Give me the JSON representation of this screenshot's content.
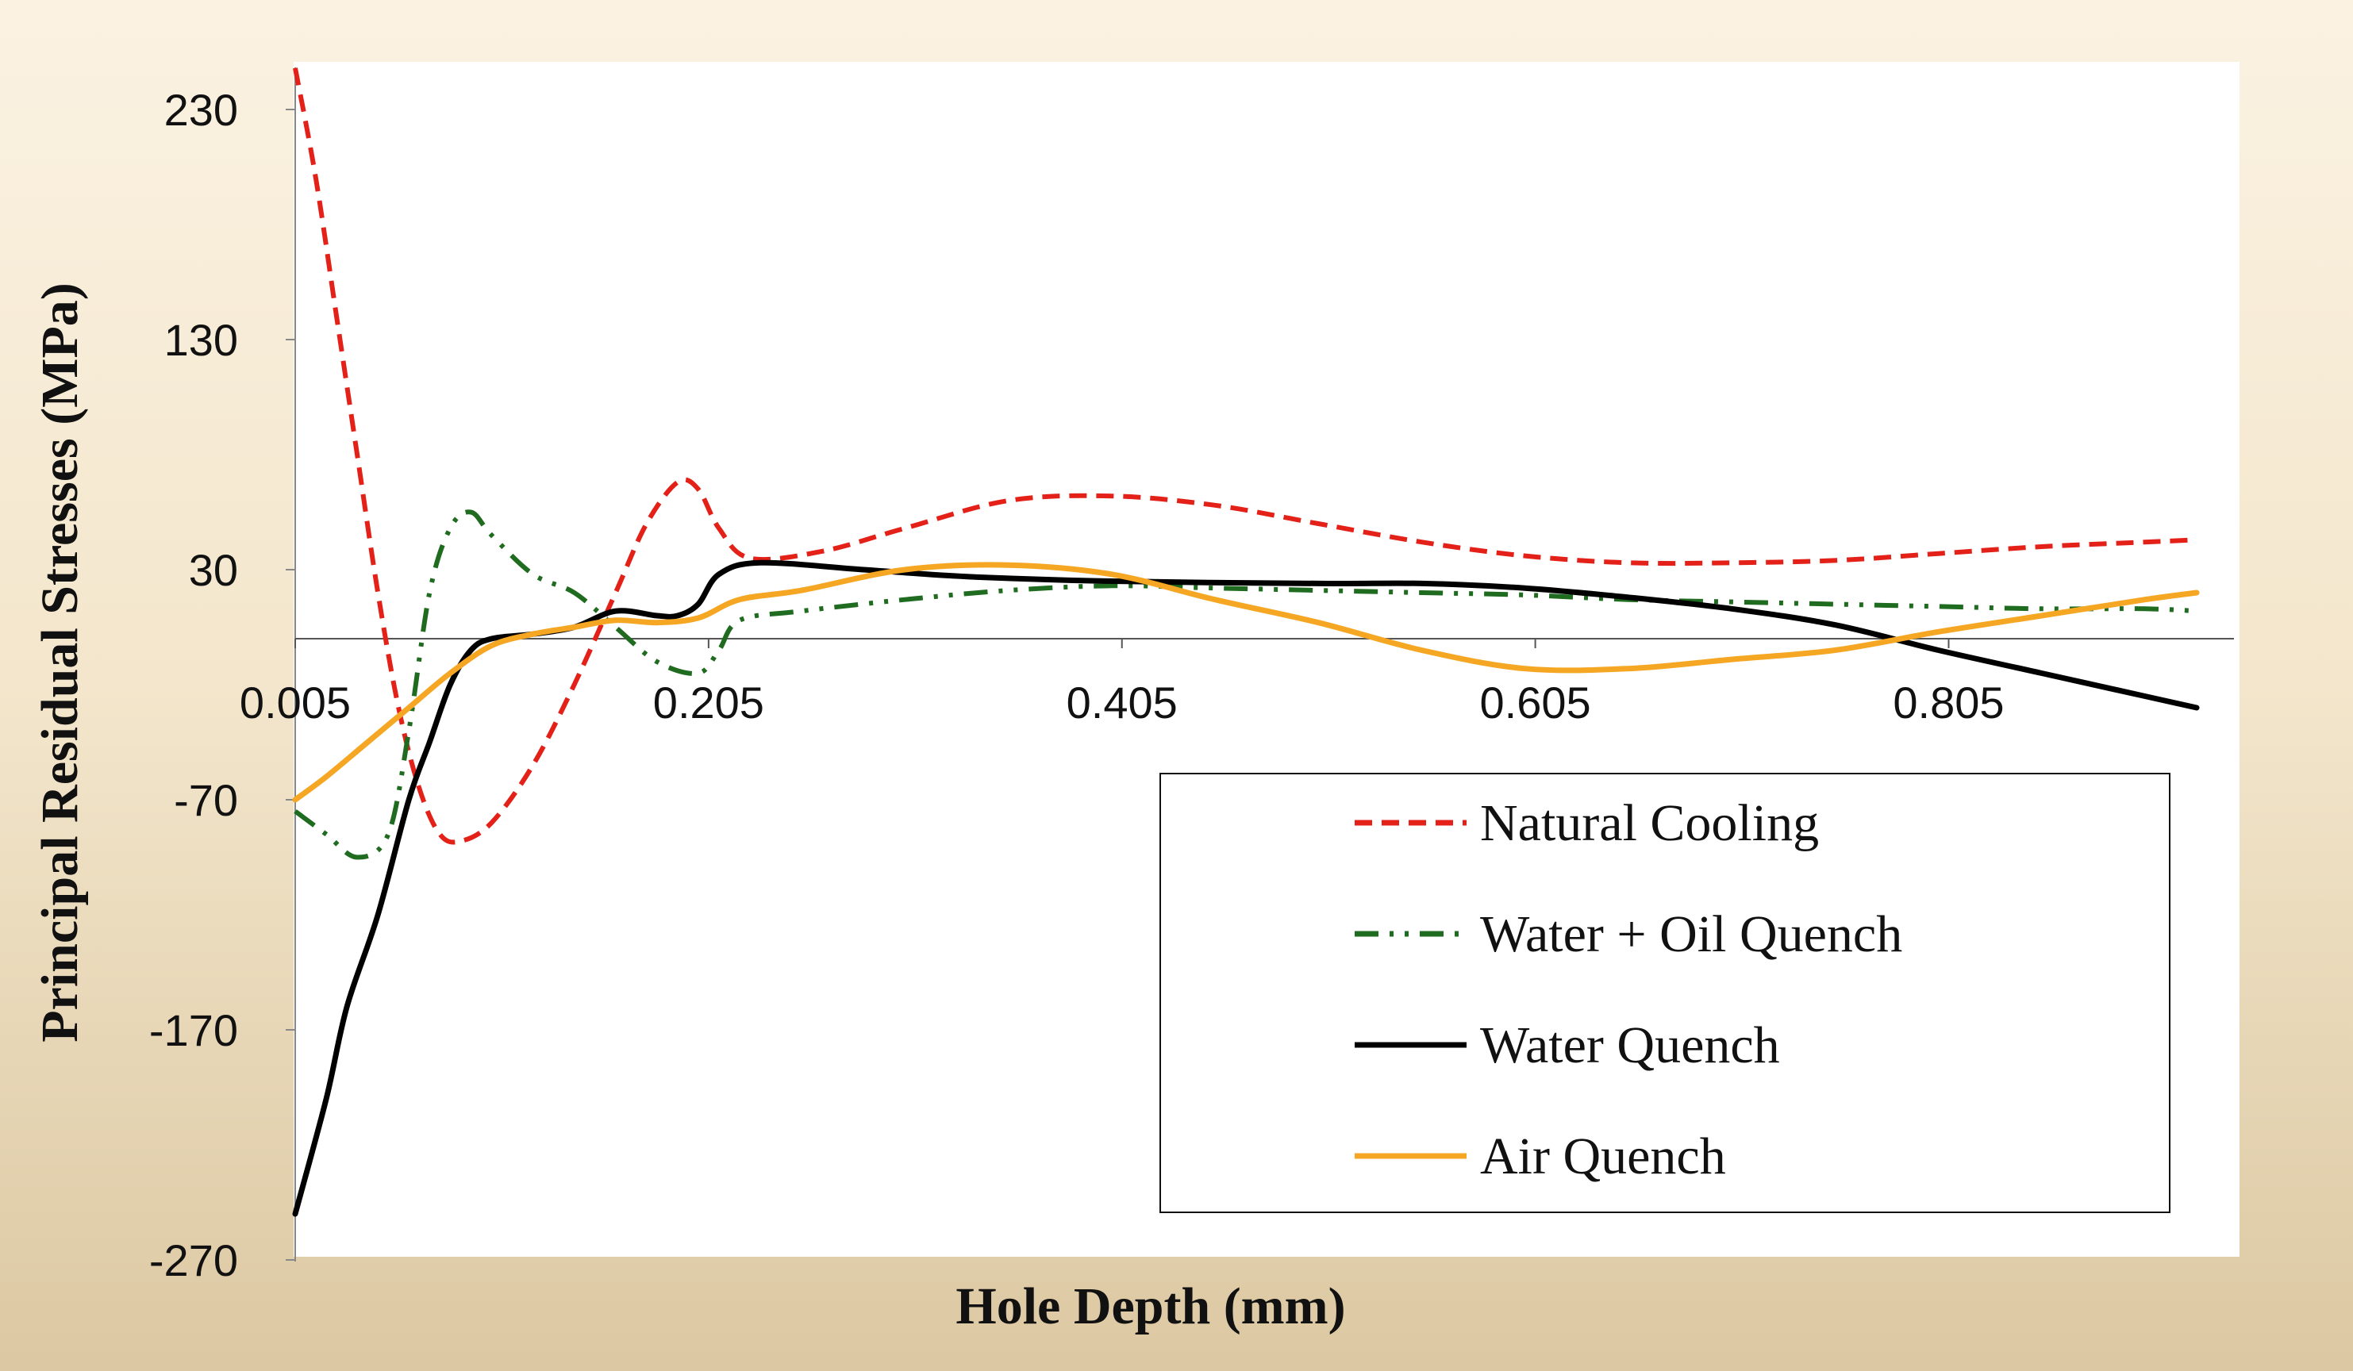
{
  "chart_data": {
    "type": "line",
    "title": "",
    "xlabel": "Hole Depth (mm)",
    "ylabel": "Principal Residual Stresses (MPa)",
    "xlim": [
      0.005,
      0.925
    ],
    "ylim": [
      -270,
      250
    ],
    "xticks": [
      0.005,
      0.205,
      0.405,
      0.605,
      0.805
    ],
    "xtick_labels": [
      "0.005",
      "0.205",
      "0.405",
      "0.605",
      "0.805"
    ],
    "yticks": [
      230,
      130,
      30,
      -70,
      -170,
      -270
    ],
    "ytick_labels": [
      "230",
      "130",
      "30",
      "-70",
      "-170",
      "-270"
    ],
    "grid": false,
    "legend_position": "bottom-right",
    "series": [
      {
        "name": "Natural Cooling",
        "color": "#e32119",
        "style": "dashed",
        "points": [
          [
            0.005,
            248
          ],
          [
            0.015,
            200
          ],
          [
            0.025,
            140
          ],
          [
            0.035,
            80
          ],
          [
            0.045,
            20
          ],
          [
            0.055,
            -30
          ],
          [
            0.065,
            -65
          ],
          [
            0.075,
            -85
          ],
          [
            0.085,
            -88
          ],
          [
            0.1,
            -80
          ],
          [
            0.12,
            -55
          ],
          [
            0.14,
            -20
          ],
          [
            0.16,
            20
          ],
          [
            0.175,
            50
          ],
          [
            0.19,
            68
          ],
          [
            0.2,
            65
          ],
          [
            0.21,
            48
          ],
          [
            0.225,
            35
          ],
          [
            0.26,
            38
          ],
          [
            0.3,
            48
          ],
          [
            0.35,
            60
          ],
          [
            0.4,
            62
          ],
          [
            0.45,
            58
          ],
          [
            0.5,
            50
          ],
          [
            0.55,
            42
          ],
          [
            0.6,
            36
          ],
          [
            0.65,
            33
          ],
          [
            0.7,
            33
          ],
          [
            0.75,
            34
          ],
          [
            0.8,
            37
          ],
          [
            0.85,
            40
          ],
          [
            0.9,
            42
          ],
          [
            0.925,
            43
          ]
        ]
      },
      {
        "name": "Water + Oil Quench",
        "color": "#1f6b1f",
        "style": "dash-dot-dot",
        "points": [
          [
            0.005,
            -75
          ],
          [
            0.02,
            -85
          ],
          [
            0.035,
            -95
          ],
          [
            0.05,
            -85
          ],
          [
            0.06,
            -40
          ],
          [
            0.07,
            20
          ],
          [
            0.08,
            48
          ],
          [
            0.09,
            55
          ],
          [
            0.1,
            45
          ],
          [
            0.12,
            28
          ],
          [
            0.14,
            20
          ],
          [
            0.16,
            5
          ],
          [
            0.18,
            -10
          ],
          [
            0.2,
            -15
          ],
          [
            0.21,
            -5
          ],
          [
            0.22,
            8
          ],
          [
            0.25,
            12
          ],
          [
            0.3,
            17
          ],
          [
            0.35,
            21
          ],
          [
            0.4,
            23
          ],
          [
            0.45,
            22
          ],
          [
            0.5,
            21
          ],
          [
            0.55,
            20
          ],
          [
            0.6,
            19
          ],
          [
            0.65,
            17
          ],
          [
            0.7,
            16
          ],
          [
            0.75,
            15
          ],
          [
            0.8,
            14
          ],
          [
            0.85,
            13
          ],
          [
            0.9,
            13
          ],
          [
            0.925,
            12
          ]
        ]
      },
      {
        "name": "Water Quench",
        "color": "#000000",
        "style": "solid",
        "points": [
          [
            0.005,
            -250
          ],
          [
            0.02,
            -200
          ],
          [
            0.03,
            -160
          ],
          [
            0.045,
            -120
          ],
          [
            0.06,
            -70
          ],
          [
            0.07,
            -45
          ],
          [
            0.08,
            -20
          ],
          [
            0.09,
            -5
          ],
          [
            0.1,
            0
          ],
          [
            0.12,
            2
          ],
          [
            0.14,
            5
          ],
          [
            0.16,
            12
          ],
          [
            0.18,
            10
          ],
          [
            0.19,
            10
          ],
          [
            0.2,
            15
          ],
          [
            0.21,
            28
          ],
          [
            0.23,
            33
          ],
          [
            0.28,
            30
          ],
          [
            0.33,
            27
          ],
          [
            0.4,
            25
          ],
          [
            0.5,
            24
          ],
          [
            0.55,
            24
          ],
          [
            0.6,
            22
          ],
          [
            0.65,
            18
          ],
          [
            0.7,
            13
          ],
          [
            0.75,
            6
          ],
          [
            0.8,
            -5
          ],
          [
            0.85,
            -15
          ],
          [
            0.9,
            -25
          ],
          [
            0.925,
            -30
          ]
        ]
      },
      {
        "name": "Air Quench",
        "color": "#f5a623",
        "style": "solid",
        "points": [
          [
            0.005,
            -70
          ],
          [
            0.02,
            -60
          ],
          [
            0.04,
            -45
          ],
          [
            0.06,
            -30
          ],
          [
            0.08,
            -15
          ],
          [
            0.1,
            -3
          ],
          [
            0.12,
            2
          ],
          [
            0.14,
            5
          ],
          [
            0.16,
            8
          ],
          [
            0.18,
            7
          ],
          [
            0.2,
            9
          ],
          [
            0.22,
            17
          ],
          [
            0.25,
            21
          ],
          [
            0.3,
            30
          ],
          [
            0.35,
            32
          ],
          [
            0.4,
            28
          ],
          [
            0.45,
            17
          ],
          [
            0.5,
            7
          ],
          [
            0.55,
            -5
          ],
          [
            0.6,
            -13
          ],
          [
            0.65,
            -13
          ],
          [
            0.7,
            -9
          ],
          [
            0.75,
            -5
          ],
          [
            0.8,
            3
          ],
          [
            0.85,
            10
          ],
          [
            0.9,
            17
          ],
          [
            0.925,
            20
          ]
        ]
      }
    ]
  }
}
